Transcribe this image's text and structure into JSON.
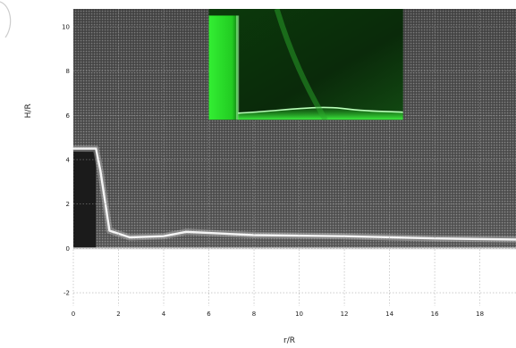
{
  "chart_data": {
    "type": "heatmap",
    "xlabel": "r/R",
    "ylabel": "H/R",
    "xlim": [
      0,
      19.6
    ],
    "ylim": [
      -2.6,
      10.8
    ],
    "x_ticks": [
      0,
      2,
      4,
      6,
      8,
      10,
      12,
      14,
      16,
      18
    ],
    "y_ticks": [
      -2,
      0,
      2,
      4,
      6,
      8,
      10
    ],
    "grid": true,
    "colormap": "gray",
    "colors": {
      "field": "#5a5a5a",
      "column": "#1a1a1a",
      "front": "#f2f2f2",
      "inset_green": "#22dd22"
    },
    "collapsing_column": {
      "r_extent": [
        0,
        1.0
      ],
      "h_extent": [
        0,
        4.5
      ]
    },
    "current_front_profile": {
      "r": [
        1.0,
        1.2,
        1.6,
        2.5,
        4.0,
        5.0,
        8.0,
        12.0,
        16.0,
        19.6
      ],
      "h": [
        4.5,
        3.5,
        0.8,
        0.5,
        0.55,
        0.75,
        0.6,
        0.55,
        0.45,
        0.4
      ]
    },
    "inset_photo": {
      "r_extent": [
        6.0,
        14.6
      ],
      "h_extent": [
        5.8,
        10.8
      ]
    }
  }
}
